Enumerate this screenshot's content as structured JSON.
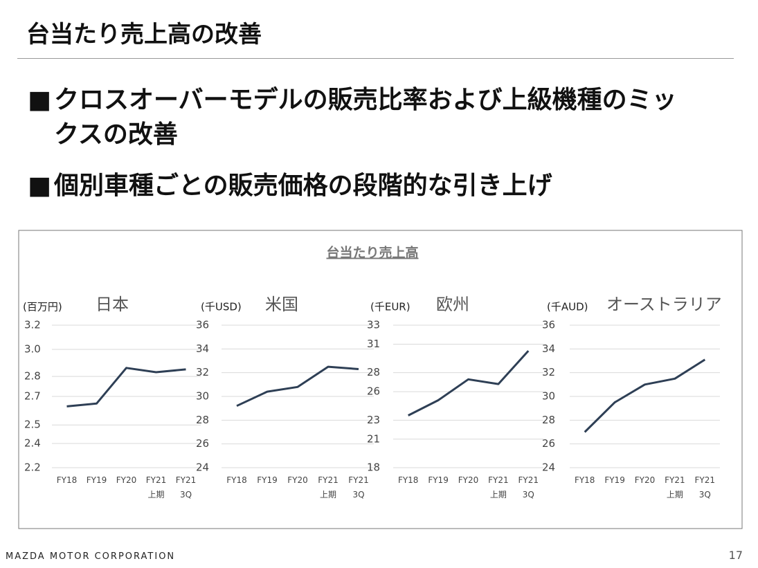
{
  "header": {
    "title": "台当たり売上高の改善"
  },
  "bullets": [
    "クロスオーバーモデルの販売比率および上級機種のミックスの改善",
    "個別車種ごとの販売価格の段階的な引き上げ"
  ],
  "panel_title": "台当たり売上高",
  "chart_data": [
    {
      "type": "line",
      "title": "日本",
      "ylabel": "(百万円)",
      "color": "#2e3f55",
      "grid": true,
      "categories": [
        "FY18",
        "FY19",
        "FY20",
        "FY21\n上期",
        "FY21\n3Q"
      ],
      "values": [
        2.63,
        2.65,
        2.9,
        2.87,
        2.89
      ],
      "ylim": [
        2.2,
        3.2
      ],
      "yticks": [
        2.2,
        {
          "value": 2.37,
          "label": "2.4"
        },
        2.5,
        2.7,
        {
          "value": 2.84,
          "label": "2.8"
        },
        {
          "value": 3.03,
          "label": "3.0"
        },
        3.2
      ]
    },
    {
      "type": "line",
      "title": "米国",
      "ylabel": "(千USD)",
      "color": "#2e3f55",
      "grid": true,
      "categories": [
        "FY18",
        "FY19",
        "FY20",
        "FY21\n上期",
        "FY21\n3Q"
      ],
      "values": [
        29.2,
        30.4,
        30.8,
        32.5,
        32.3
      ],
      "ylim": [
        24,
        36
      ],
      "yticks": [
        24,
        26,
        28,
        30,
        32,
        34,
        36
      ]
    },
    {
      "type": "line",
      "title": "欧州",
      "ylabel": "(千EUR)",
      "color": "#2e3f55",
      "grid": true,
      "categories": [
        "FY18",
        "FY19",
        "FY20",
        "FY21\n上期",
        "FY21\n3Q"
      ],
      "values": [
        23.5,
        25.1,
        27.3,
        26.8,
        30.3
      ],
      "ylim": [
        18,
        33
      ],
      "yticks": [
        18,
        21,
        23,
        26,
        28,
        31,
        33
      ]
    },
    {
      "type": "line",
      "title": "オーストラリア",
      "ylabel": "(千AUD)",
      "color": "#2e3f55",
      "grid": true,
      "categories": [
        "FY18",
        "FY19",
        "FY20",
        "FY21\n上期",
        "FY21\n3Q"
      ],
      "values": [
        27.0,
        29.5,
        31.0,
        31.5,
        33.1
      ],
      "ylim": [
        24,
        36
      ],
      "yticks": [
        24,
        26,
        28,
        30,
        32,
        34,
        36
      ]
    }
  ],
  "footer": {
    "company": "MAZDA MOTOR CORPORATION",
    "page": "17"
  }
}
